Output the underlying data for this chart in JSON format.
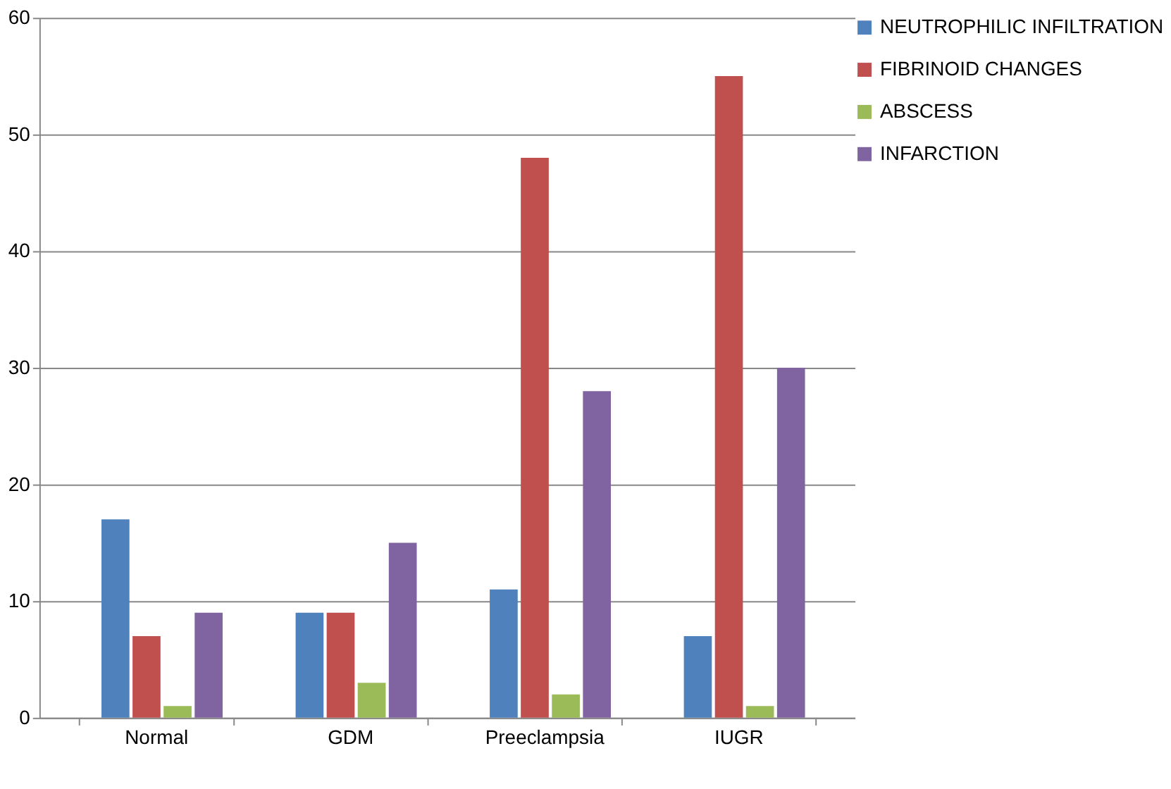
{
  "chart_data": {
    "type": "bar",
    "categories": [
      "Normal",
      "GDM",
      "Preeclampsia",
      "IUGR"
    ],
    "series": [
      {
        "name": "NEUTROPHILIC INFILTRATION",
        "color": "#4f81bd",
        "values": [
          17,
          9,
          11,
          7
        ]
      },
      {
        "name": "FIBRINOID CHANGES",
        "color": "#c0504d",
        "values": [
          7,
          9,
          48,
          55
        ]
      },
      {
        "name": "ABSCESS",
        "color": "#9bbb59",
        "values": [
          1,
          3,
          2,
          1
        ]
      },
      {
        "name": "INFARCTION",
        "color": "#8064a2",
        "values": [
          9,
          15,
          28,
          30
        ]
      }
    ],
    "ylim": [
      0,
      60
    ],
    "yticks": [
      0,
      10,
      20,
      30,
      40,
      50,
      60
    ],
    "grid": "y",
    "legend": "right"
  }
}
